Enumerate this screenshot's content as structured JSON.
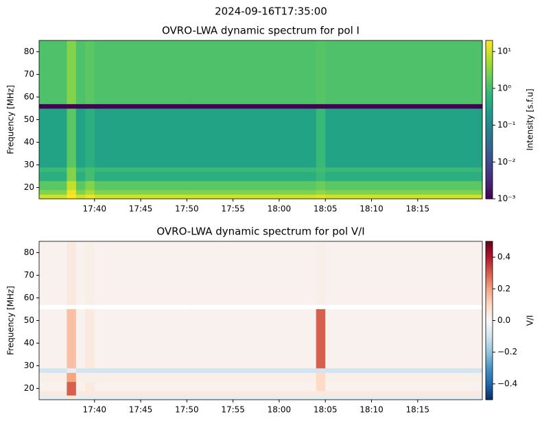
{
  "chart_data": [
    {
      "type": "heatmap",
      "suptitle": "2024-09-16T17:35:00",
      "title": "OVRO-LWA dynamic spectrum for pol I",
      "ylabel": "Frequency [MHz]",
      "colorbar_label": "Intensity [s.f.u]",
      "colormap": "viridis",
      "color_log": true,
      "xlim": [
        "17:34",
        "18:22"
      ],
      "ylim": [
        15,
        85
      ],
      "xticks": [
        "17:40",
        "17:45",
        "17:50",
        "17:55",
        "18:00",
        "18:05",
        "18:10",
        "18:15"
      ],
      "yticks": [
        20,
        30,
        40,
        50,
        60,
        70,
        80
      ],
      "clim": [
        0.001,
        20
      ],
      "cticks": [
        {
          "value": 0.001,
          "label": "10⁻³"
        },
        {
          "value": 0.01,
          "label": "10⁻²"
        },
        {
          "value": 0.1,
          "label": "10⁻¹"
        },
        {
          "value": 1,
          "label": "10⁰"
        },
        {
          "value": 10,
          "label": "10¹"
        }
      ],
      "x_edges": [
        "17:34",
        "17:36",
        "17:37",
        "17:38",
        "17:39",
        "17:40",
        "17:41",
        "17:50",
        "18:04",
        "18:05",
        "18:06",
        "18:22"
      ],
      "y_edges": [
        15,
        17,
        19,
        23,
        27,
        29,
        55,
        57,
        85
      ],
      "z": [
        [
          10,
          10,
          20,
          10,
          15,
          10,
          10,
          10,
          12,
          10,
          10
        ],
        [
          3,
          3,
          15,
          3,
          6,
          3,
          3,
          3,
          4,
          3,
          3
        ],
        [
          1.5,
          1.5,
          8,
          1.5,
          3,
          1.5,
          1.5,
          1.5,
          2,
          1.5,
          1.5
        ],
        [
          0.5,
          0.5,
          3,
          0.5,
          1,
          0.5,
          0.5,
          0.5,
          0.8,
          0.5,
          0.5
        ],
        [
          0.8,
          0.8,
          3,
          0.8,
          1,
          0.8,
          0.8,
          0.8,
          1,
          0.8,
          0.8
        ],
        [
          0.3,
          0.3,
          1.5,
          0.3,
          0.5,
          0.3,
          0.3,
          0.3,
          0.8,
          0.3,
          0.3
        ],
        [
          0.001,
          0.001,
          0.001,
          0.001,
          0.001,
          0.001,
          0.001,
          0.001,
          0.001,
          0.001,
          0.001
        ],
        [
          1.2,
          1.2,
          3,
          1.2,
          1.5,
          1.2,
          1.2,
          1.2,
          1.4,
          1.2,
          1.2
        ]
      ]
    },
    {
      "type": "heatmap",
      "title": "OVRO-LWA dynamic spectrum for pol V/I",
      "ylabel": "Frequency [MHz]",
      "colorbar_label": "V/I",
      "colormap": "RdBu_r",
      "color_log": false,
      "xlim": [
        "17:34",
        "18:22"
      ],
      "ylim": [
        15,
        85
      ],
      "xticks": [
        "17:40",
        "17:45",
        "17:50",
        "17:55",
        "18:00",
        "18:05",
        "18:10",
        "18:15"
      ],
      "yticks": [
        20,
        30,
        40,
        50,
        60,
        70,
        80
      ],
      "clim": [
        -0.5,
        0.5
      ],
      "cticks": [
        {
          "value": -0.4,
          "label": "−0.4"
        },
        {
          "value": -0.2,
          "label": "−0.2"
        },
        {
          "value": 0,
          "label": "0.0"
        },
        0.2,
        0.4
      ],
      "x_edges": [
        "17:34",
        "17:36",
        "17:37",
        "17:38",
        "17:39",
        "17:40",
        "17:41",
        "17:50",
        "18:04",
        "18:05",
        "18:06",
        "18:22"
      ],
      "y_edges": [
        15,
        17,
        19,
        23,
        27,
        29,
        55,
        57,
        85
      ],
      "z": [
        [
          -0.05,
          -0.05,
          0.05,
          -0.05,
          -0.05,
          -0.05,
          -0.05,
          -0.05,
          -0.05,
          -0.05,
          -0.05
        ],
        [
          0.05,
          0.05,
          0.3,
          0.05,
          0.05,
          0.05,
          0.05,
          0.05,
          0.05,
          0.05,
          0.05
        ],
        [
          0.02,
          0.02,
          0.3,
          0.02,
          0.05,
          0.02,
          0.02,
          0.02,
          0.1,
          0.02,
          0.02
        ],
        [
          0.03,
          0.03,
          0.2,
          0.03,
          0.03,
          0.03,
          0.03,
          0.03,
          0.1,
          0.03,
          0.03
        ],
        [
          -0.1,
          -0.1,
          -0.05,
          -0.1,
          -0.1,
          -0.1,
          -0.1,
          -0.1,
          -0.1,
          -0.1,
          -0.1
        ],
        [
          0.02,
          0.02,
          0.15,
          0.02,
          0.05,
          0.02,
          0.02,
          0.02,
          0.3,
          0.02,
          0.02
        ],
        [
          null,
          null,
          null,
          null,
          null,
          null,
          null,
          null,
          null,
          null,
          null
        ],
        [
          0.02,
          0.02,
          0.05,
          0.02,
          0.03,
          0.02,
          0.02,
          0.02,
          0.03,
          0.02,
          0.02
        ]
      ]
    }
  ]
}
